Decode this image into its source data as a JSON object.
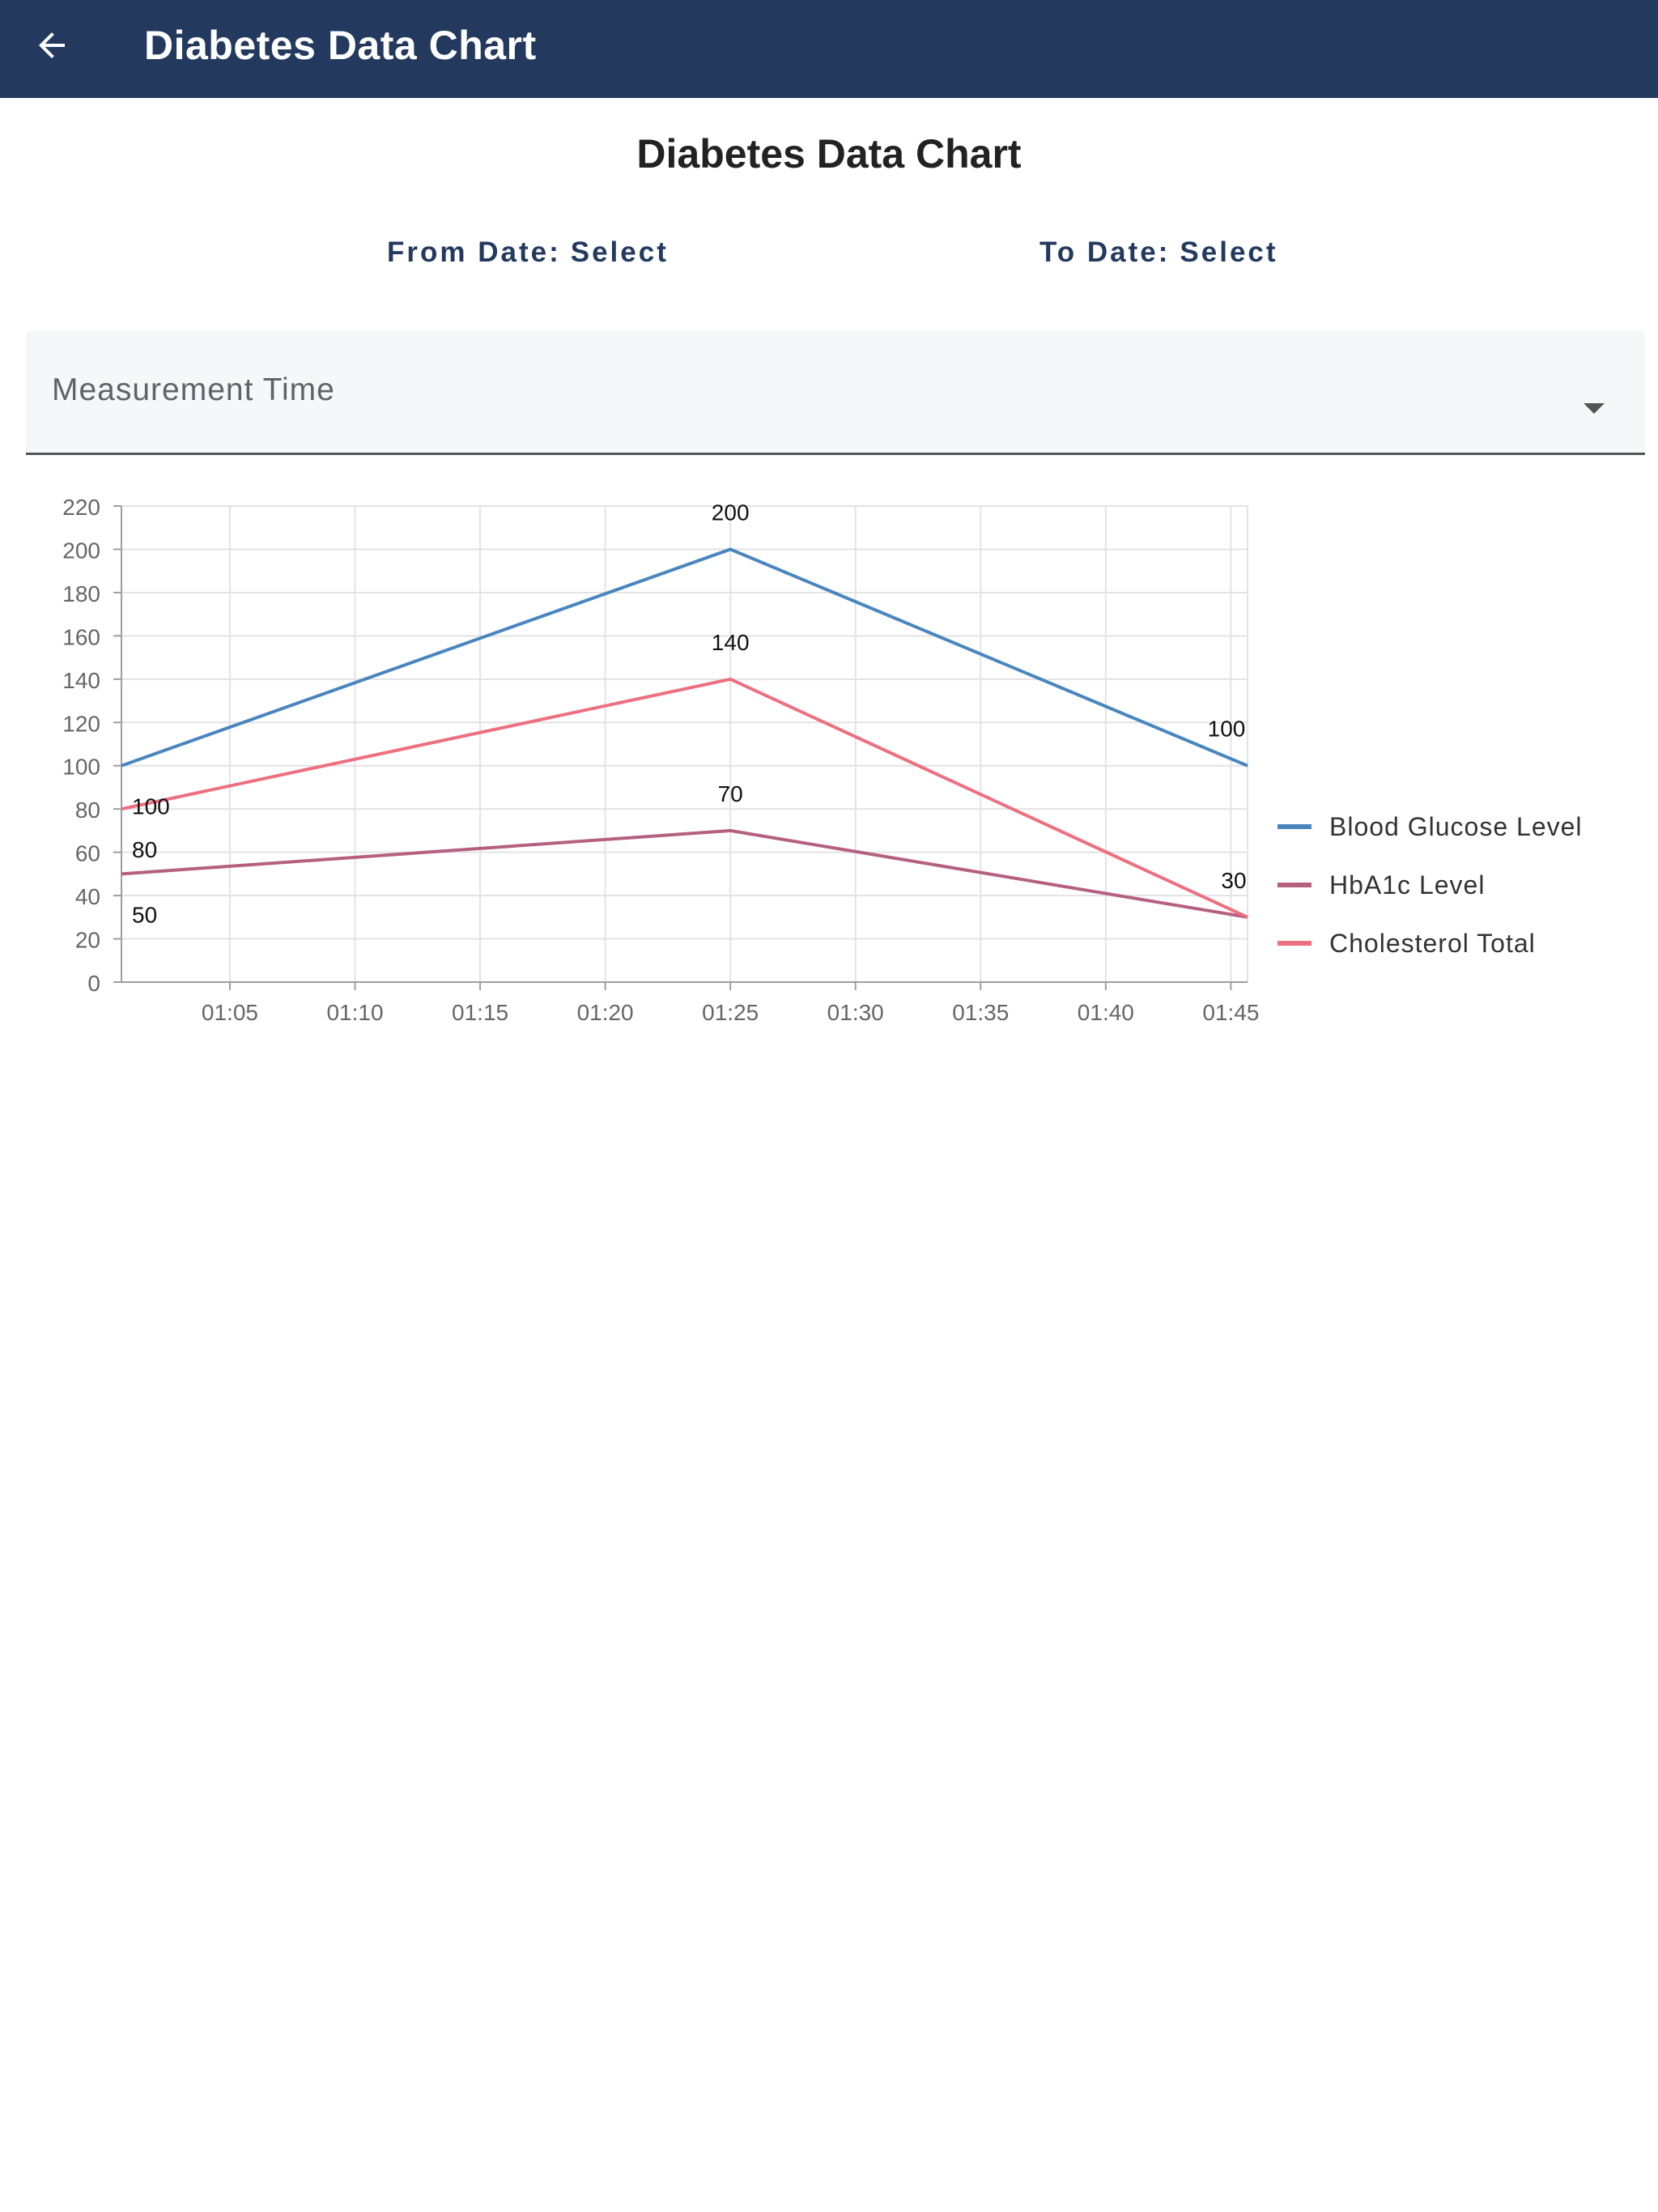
{
  "appbar": {
    "title": "Diabetes Data Chart"
  },
  "page": {
    "title": "Diabetes Data Chart"
  },
  "filters": {
    "from_label": "From Date:",
    "from_value": "Select",
    "to_label": "To Date:",
    "to_value": "Select",
    "measurement_label": "Measurement Time"
  },
  "colors": {
    "appbar": "#233a5e",
    "blood_glucose": "#4a86be",
    "hba1c": "#b5607f",
    "cholesterol": "#ee6f80"
  },
  "icons": {
    "back": "arrow-left-icon",
    "dropdown": "caret-down-icon"
  },
  "chart_data": {
    "type": "line",
    "title": "",
    "xlabel": "",
    "ylabel": "",
    "x_ticks": [
      "01:05",
      "01:10",
      "01:15",
      "01:20",
      "01:25",
      "01:30",
      "01:35",
      "01:40",
      "01:45"
    ],
    "ylim": [
      0,
      220
    ],
    "yticks": [
      0,
      20,
      40,
      60,
      80,
      100,
      120,
      140,
      160,
      180,
      200,
      220
    ],
    "grid": true,
    "legend_position": "right",
    "x": [
      "01:00:40",
      "01:25:00",
      "01:45:40"
    ],
    "series": [
      {
        "name": "Blood Glucose Level",
        "color": "#4a86be",
        "values": [
          100,
          200,
          100
        ]
      },
      {
        "name": "HbA1c Level",
        "color": "#b5607f",
        "values": [
          50,
          70,
          30
        ]
      },
      {
        "name": "Cholesterol Total",
        "color": "#ee6f80",
        "values": [
          80,
          140,
          30
        ]
      }
    ]
  }
}
